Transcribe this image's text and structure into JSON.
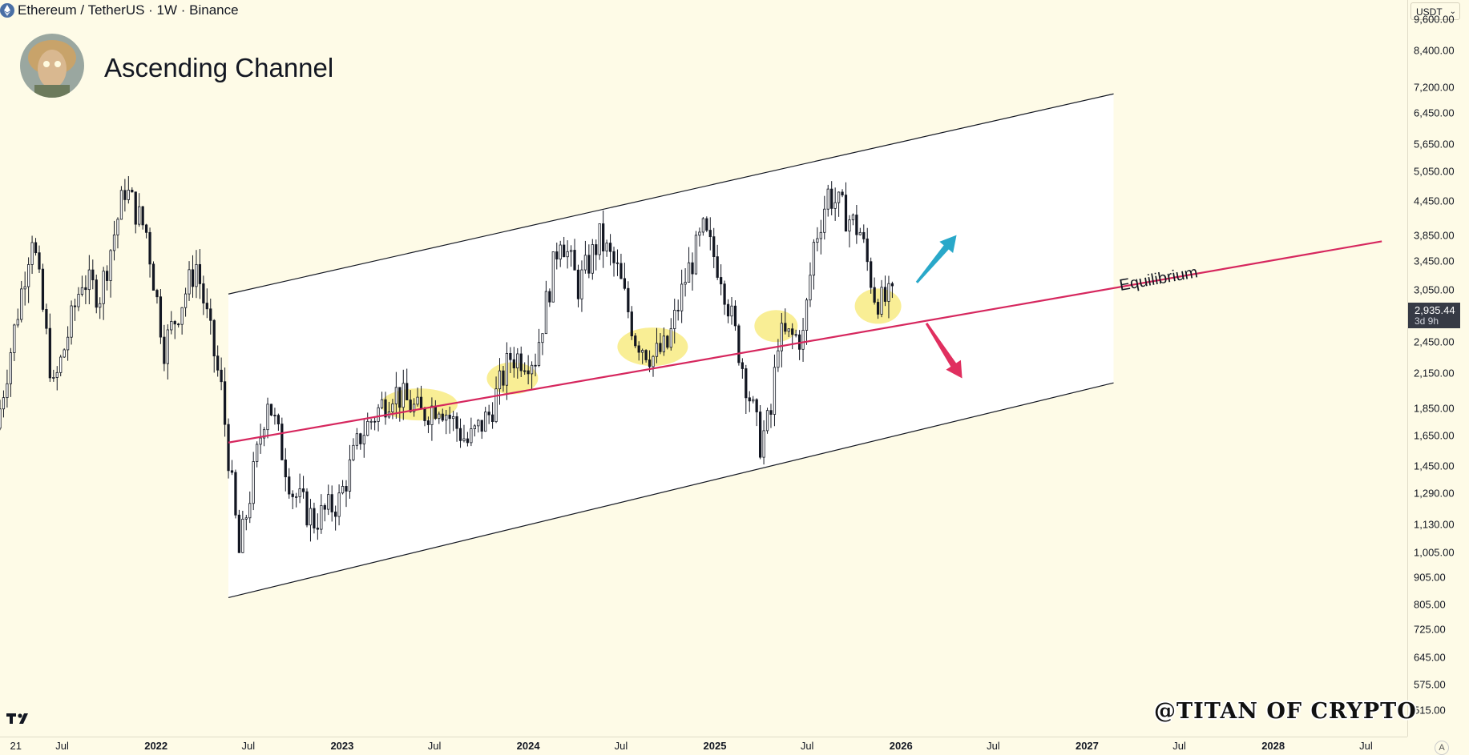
{
  "header": {
    "symbol_text": "Ethereum / TetherUS · 1W · Binance",
    "currency": "USDT"
  },
  "chart_title": "Ascending Channel",
  "watermark": "@TITAN OF CRYPTO",
  "colors": {
    "background": "#fefbe7",
    "channel_fill": "#ffffff",
    "channel_border": "#131722",
    "equilibrium": "#d6275e",
    "highlight": "#f8ea7a",
    "arrow_up": "#29a8c9",
    "arrow_down": "#e02f5f",
    "candle": "#131722",
    "price_label_bg": "#363a45"
  },
  "icons": [
    "ethereum-icon",
    "avatar-image",
    "tradingview-logo-icon",
    "chevron-down-icon",
    "arrow-up-icon",
    "arrow-down-icon"
  ],
  "price_axis": {
    "labels": [
      "9,600.00",
      "8,400.00",
      "7,200.00",
      "6,450.00",
      "5,650.00",
      "5,050.00",
      "4,450.00",
      "3,850.00",
      "3,450.00",
      "3,050.00",
      "2,450.00",
      "2,150.00",
      "1,850.00",
      "1,650.00",
      "1,450.00",
      "1,290.00",
      "1,130.00",
      "1,005.00",
      "905.00",
      "805.00",
      "725.00",
      "645.00",
      "575.00",
      "515.00"
    ],
    "last_price": "2,935.44",
    "countdown": "3d 9h"
  },
  "time_axis": {
    "labels": [
      {
        "text": "21",
        "x": "2021-04-01",
        "year": false
      },
      {
        "text": "Jul",
        "x": "2021-07-01",
        "year": false
      },
      {
        "text": "2022",
        "x": "2022-01-01",
        "year": true
      },
      {
        "text": "Jul",
        "x": "2022-07-01",
        "year": false
      },
      {
        "text": "2023",
        "x": "2023-01-01",
        "year": true
      },
      {
        "text": "Jul",
        "x": "2023-07-01",
        "year": false
      },
      {
        "text": "2024",
        "x": "2024-01-01",
        "year": true
      },
      {
        "text": "Jul",
        "x": "2024-07-01",
        "year": false
      },
      {
        "text": "2025",
        "x": "2025-01-01",
        "year": true
      },
      {
        "text": "Jul",
        "x": "2025-07-01",
        "year": false
      },
      {
        "text": "2026",
        "x": "2026-01-01",
        "year": true
      },
      {
        "text": "Jul",
        "x": "2026-07-01",
        "year": false
      },
      {
        "text": "2027",
        "x": "2027-01-01",
        "year": true
      },
      {
        "text": "Jul",
        "x": "2027-07-01",
        "year": false
      },
      {
        "text": "2028",
        "x": "2028-01-01",
        "year": true
      },
      {
        "text": "Jul",
        "x": "2028-07-01",
        "year": false
      }
    ],
    "auto_label": "A"
  },
  "chart_data": {
    "type": "candlestick",
    "title": "Ascending Channel",
    "scale": "log",
    "ylim": [
      480,
      10000
    ],
    "xlim": [
      "2021-03-01",
      "2028-09-20"
    ],
    "annotation_text": "Equilibrium",
    "channel": {
      "upper": [
        {
          "x": "2022-05-23",
          "y": 3000
        },
        {
          "x": "2027-02-22",
          "y": 7000
        }
      ],
      "equilibrium": [
        {
          "x": "2022-05-23",
          "y": 1600
        },
        {
          "x": "2028-08-01",
          "y": 3750
        }
      ],
      "lower": [
        {
          "x": "2022-05-23",
          "y": 830
        },
        {
          "x": "2027-02-22",
          "y": 2060
        }
      ]
    },
    "highlights": [
      {
        "x": "2023-06-01",
        "y": 1880
      },
      {
        "x": "2023-12-01",
        "y": 2100
      },
      {
        "x": "2024-09-01",
        "y": 2400
      },
      {
        "x": "2025-05-01",
        "y": 2620
      },
      {
        "x": "2025-11-17",
        "y": 2850
      }
    ],
    "arrows": [
      {
        "direction": "up",
        "from": {
          "x": "2026-02-01",
          "y": 3150
        },
        "to": {
          "x": "2026-04-20",
          "y": 3850
        }
      },
      {
        "direction": "down",
        "from": {
          "x": "2026-02-20",
          "y": 2650
        },
        "to": {
          "x": "2026-05-01",
          "y": 2100
        }
      }
    ],
    "price_anchors": [
      [
        "2021-03-01",
        1700
      ],
      [
        "2021-05-10",
        3900
      ],
      [
        "2021-06-21",
        2000
      ],
      [
        "2021-08-16",
        3200
      ],
      [
        "2021-09-20",
        3000
      ],
      [
        "2021-11-08",
        4700
      ],
      [
        "2021-12-20",
        3900
      ],
      [
        "2022-01-24",
        2400
      ],
      [
        "2022-03-28",
        3400
      ],
      [
        "2022-05-16",
        2000
      ],
      [
        "2022-06-20",
        1000
      ],
      [
        "2022-08-15",
        1950
      ],
      [
        "2022-10-03",
        1300
      ],
      [
        "2022-11-14",
        1150
      ],
      [
        "2023-01-02",
        1250
      ],
      [
        "2023-02-13",
        1650
      ],
      [
        "2023-04-17",
        2000
      ],
      [
        "2023-06-12",
        1800
      ],
      [
        "2023-07-17",
        1900
      ],
      [
        "2023-09-11",
        1600
      ],
      [
        "2023-10-23",
        1800
      ],
      [
        "2023-12-04",
        2300
      ],
      [
        "2024-01-22",
        2300
      ],
      [
        "2024-03-11",
        3900
      ],
      [
        "2024-04-15",
        3100
      ],
      [
        "2024-05-27",
        3800
      ],
      [
        "2024-07-01",
        3300
      ],
      [
        "2024-08-05",
        2500
      ],
      [
        "2024-09-09",
        2300
      ],
      [
        "2024-10-07",
        2400
      ],
      [
        "2024-11-11",
        3200
      ],
      [
        "2024-12-16",
        3900
      ],
      [
        "2025-01-20",
        3300
      ],
      [
        "2025-02-10",
        2700
      ],
      [
        "2025-04-07",
        1600
      ],
      [
        "2025-04-28",
        1800
      ],
      [
        "2025-05-12",
        2500
      ],
      [
        "2025-06-30",
        2500
      ],
      [
        "2025-07-21",
        3700
      ],
      [
        "2025-08-18",
        4600
      ],
      [
        "2025-09-22",
        4200
      ],
      [
        "2025-10-20",
        3900
      ],
      [
        "2025-11-17",
        3000
      ],
      [
        "2025-12-01",
        2900
      ],
      [
        "2025-12-15",
        2935
      ]
    ]
  }
}
